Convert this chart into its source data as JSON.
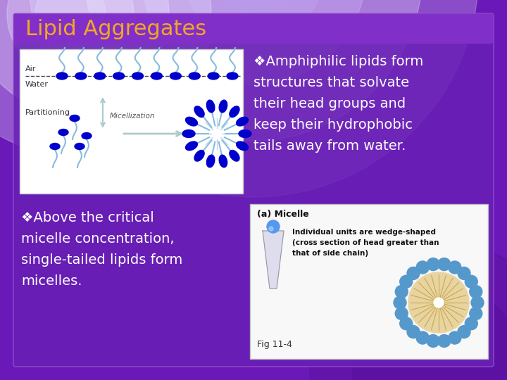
{
  "title": "Lipid Aggregates",
  "title_color": "#F5A623",
  "title_fontsize": 22,
  "bg_grad_top": "#D8D0E8",
  "bg_grad_bottom": "#7020B0",
  "slide_rect_color": "#6B18B8",
  "title_bar_color": "#8830CC",
  "text_color": "#FFFFFF",
  "text_fontsize": 14,
  "diagram_bg": "#FFFFFF",
  "right_box_bg": "#F8F8F8",
  "bullet_symbol": "❖",
  "bullet1_lines": [
    "❖Amphiphilic lipids form",
    "structures that solvate",
    "their head groups and",
    "keep their hydrophobic",
    "tails away from water."
  ],
  "bullet2_lines": [
    "❖Above the critical",
    "micelle concentration,",
    "single-tailed lipids form",
    "micelles."
  ],
  "fig_caption": "Fig 11-4",
  "air_label": "Air",
  "water_label": "Water",
  "partitioning_label": "Partitioning",
  "micellization_label": "Micellization",
  "micelle_label": "(a) Micelle",
  "micelle_text_line1": "Individual units are wedge-shaped",
  "micelle_text_line2": "(cross section of head greater than",
  "micelle_text_line3": "that of side chain)",
  "lipid_head_color": "#0000CC",
  "lipid_tail_color": "#88BBDD",
  "micelle_outer_color": "#5599CC",
  "micelle_inner_color": "#E8D4A0",
  "micelle_white": "#FFFFFF"
}
